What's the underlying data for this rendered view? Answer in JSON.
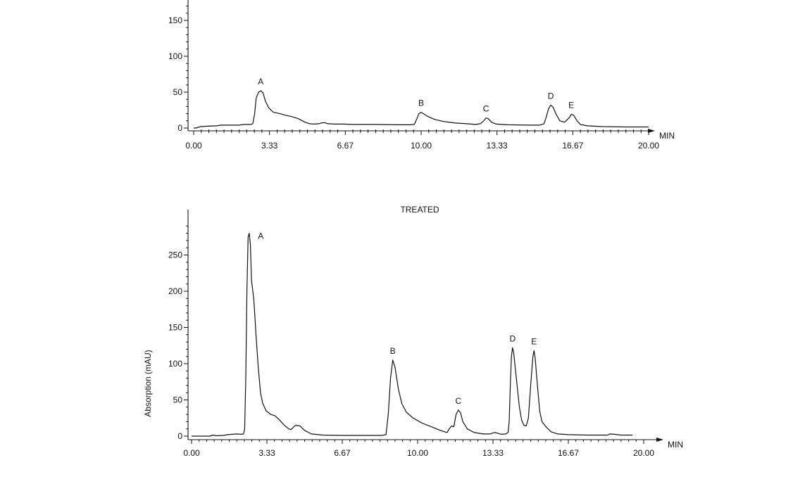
{
  "chart_data": [
    {
      "type": "line",
      "title": "",
      "xlabel": "MIN",
      "ylabel": "",
      "x_ticks": [
        "0.00",
        "3.33",
        "6.67",
        "10.00",
        "13.33",
        "16.67",
        "20.00"
      ],
      "y_ticks": [
        "0",
        "50",
        "100",
        "150"
      ],
      "xlim": [
        0,
        20
      ],
      "ylim": [
        0,
        180
      ],
      "series": [
        {
          "points": [
            [
              0,
              0
            ],
            [
              0.1,
              0
            ],
            [
              0.3,
              2
            ],
            [
              0.6,
              2.5
            ],
            [
              1.0,
              3
            ],
            [
              1.2,
              4
            ],
            [
              1.6,
              4
            ],
            [
              2.0,
              4
            ],
            [
              2.2,
              5
            ],
            [
              2.5,
              5
            ],
            [
              2.6,
              6
            ],
            [
              2.68,
              20
            ],
            [
              2.75,
              42
            ],
            [
              2.85,
              50
            ],
            [
              2.95,
              52
            ],
            [
              3.05,
              49
            ],
            [
              3.15,
              38
            ],
            [
              3.3,
              28
            ],
            [
              3.5,
              22
            ],
            [
              3.8,
              20
            ],
            [
              4.0,
              18
            ],
            [
              4.3,
              16
            ],
            [
              4.6,
              13
            ],
            [
              4.9,
              8
            ],
            [
              5.1,
              6
            ],
            [
              5.3,
              5.5
            ],
            [
              5.5,
              6
            ],
            [
              5.6,
              7
            ],
            [
              5.75,
              7.5
            ],
            [
              5.9,
              6
            ],
            [
              6.2,
              5.5
            ],
            [
              6.6,
              5.5
            ],
            [
              7.0,
              5
            ],
            [
              8.0,
              5
            ],
            [
              9.0,
              4.5
            ],
            [
              9.5,
              4.5
            ],
            [
              9.7,
              5
            ],
            [
              9.8,
              12
            ],
            [
              9.9,
              20
            ],
            [
              10.0,
              22
            ],
            [
              10.1,
              20
            ],
            [
              10.3,
              16
            ],
            [
              10.6,
              12
            ],
            [
              11.0,
              9
            ],
            [
              11.5,
              7
            ],
            [
              12.0,
              6
            ],
            [
              12.4,
              5
            ],
            [
              12.6,
              6
            ],
            [
              12.75,
              10
            ],
            [
              12.85,
              14
            ],
            [
              12.95,
              13
            ],
            [
              13.1,
              8
            ],
            [
              13.3,
              5.5
            ],
            [
              13.8,
              4.5
            ],
            [
              14.8,
              4
            ],
            [
              15.2,
              4
            ],
            [
              15.4,
              6
            ],
            [
              15.5,
              15
            ],
            [
              15.6,
              27
            ],
            [
              15.7,
              32
            ],
            [
              15.8,
              29
            ],
            [
              15.95,
              18
            ],
            [
              16.1,
              10
            ],
            [
              16.3,
              8
            ],
            [
              16.5,
              14
            ],
            [
              16.6,
              19
            ],
            [
              16.7,
              18
            ],
            [
              16.85,
              10
            ],
            [
              17.0,
              5
            ],
            [
              17.3,
              3
            ],
            [
              18,
              2
            ],
            [
              19,
              1.5
            ],
            [
              20,
              1.5
            ]
          ]
        }
      ],
      "peaks": [
        {
          "label": "A",
          "x": 2.95,
          "y": 52
        },
        {
          "label": "B",
          "x": 10.0,
          "y": 22
        },
        {
          "label": "C",
          "x": 12.85,
          "y": 14
        },
        {
          "label": "D",
          "x": 15.7,
          "y": 32
        },
        {
          "label": "E",
          "x": 16.6,
          "y": 19
        }
      ]
    },
    {
      "type": "line",
      "title": "TREATED",
      "xlabel": "MIN",
      "ylabel": "Absorption (mAU)",
      "x_ticks": [
        "0.00",
        "3.33",
        "6.67",
        "10.00",
        "13.33",
        "16.67",
        "20.00"
      ],
      "y_ticks": [
        "0",
        "50",
        "100",
        "150",
        "200",
        "250"
      ],
      "xlim": [
        0,
        20
      ],
      "ylim": [
        0,
        300
      ],
      "series": [
        {
          "points": [
            [
              0,
              0
            ],
            [
              0.8,
              0
            ],
            [
              0.95,
              1.5
            ],
            [
              1.1,
              0.5
            ],
            [
              1.4,
              1
            ],
            [
              1.6,
              2
            ],
            [
              1.8,
              2.5
            ],
            [
              2.0,
              3
            ],
            [
              2.2,
              2.5
            ],
            [
              2.3,
              3
            ],
            [
              2.35,
              10
            ],
            [
              2.4,
              80
            ],
            [
              2.45,
              200
            ],
            [
              2.5,
              275
            ],
            [
              2.55,
              280
            ],
            [
              2.6,
              265
            ],
            [
              2.65,
              215
            ],
            [
              2.75,
              190
            ],
            [
              2.85,
              140
            ],
            [
              2.95,
              95
            ],
            [
              3.05,
              60
            ],
            [
              3.15,
              45
            ],
            [
              3.3,
              35
            ],
            [
              3.5,
              30
            ],
            [
              3.7,
              28
            ],
            [
              3.9,
              22
            ],
            [
              4.1,
              15
            ],
            [
              4.3,
              10
            ],
            [
              4.4,
              9
            ],
            [
              4.5,
              12
            ],
            [
              4.6,
              15
            ],
            [
              4.8,
              14
            ],
            [
              5.0,
              8
            ],
            [
              5.3,
              3
            ],
            [
              5.8,
              1.5
            ],
            [
              6.67,
              1
            ],
            [
              7.5,
              1
            ],
            [
              8.4,
              1
            ],
            [
              8.6,
              2
            ],
            [
              8.7,
              30
            ],
            [
              8.8,
              80
            ],
            [
              8.9,
              105
            ],
            [
              9.0,
              95
            ],
            [
              9.15,
              65
            ],
            [
              9.3,
              45
            ],
            [
              9.5,
              33
            ],
            [
              9.8,
              25
            ],
            [
              10.2,
              18
            ],
            [
              10.6,
              13
            ],
            [
              11.0,
              8
            ],
            [
              11.3,
              5
            ],
            [
              11.4,
              10
            ],
            [
              11.5,
              14
            ],
            [
              11.6,
              13
            ],
            [
              11.7,
              30
            ],
            [
              11.8,
              36
            ],
            [
              11.9,
              32
            ],
            [
              12.0,
              20
            ],
            [
              12.2,
              10
            ],
            [
              12.5,
              5
            ],
            [
              12.9,
              3
            ],
            [
              13.2,
              3
            ],
            [
              13.4,
              5
            ],
            [
              13.55,
              4
            ],
            [
              13.7,
              2.5
            ],
            [
              13.9,
              3
            ],
            [
              14.0,
              5
            ],
            [
              14.05,
              20
            ],
            [
              14.1,
              70
            ],
            [
              14.15,
              110
            ],
            [
              14.2,
              122
            ],
            [
              14.25,
              115
            ],
            [
              14.35,
              85
            ],
            [
              14.5,
              40
            ],
            [
              14.6,
              22
            ],
            [
              14.7,
              15
            ],
            [
              14.8,
              14
            ],
            [
              14.9,
              25
            ],
            [
              15.0,
              70
            ],
            [
              15.1,
              110
            ],
            [
              15.15,
              118
            ],
            [
              15.2,
              108
            ],
            [
              15.3,
              70
            ],
            [
              15.4,
              35
            ],
            [
              15.5,
              20
            ],
            [
              15.7,
              12
            ],
            [
              15.9,
              6
            ],
            [
              16.2,
              3
            ],
            [
              16.67,
              2
            ],
            [
              17.5,
              1.5
            ],
            [
              18.4,
              1.5
            ],
            [
              18.5,
              3
            ],
            [
              18.7,
              2.5
            ],
            [
              19.0,
              1.5
            ],
            [
              19.5,
              1.5
            ]
          ]
        }
      ],
      "peaks": [
        {
          "label": "A",
          "x": 2.5,
          "y": 280
        },
        {
          "label": "B",
          "x": 8.9,
          "y": 105
        },
        {
          "label": "C",
          "x": 11.8,
          "y": 36
        },
        {
          "label": "D",
          "x": 14.2,
          "y": 122
        },
        {
          "label": "E",
          "x": 15.15,
          "y": 118
        }
      ]
    }
  ]
}
